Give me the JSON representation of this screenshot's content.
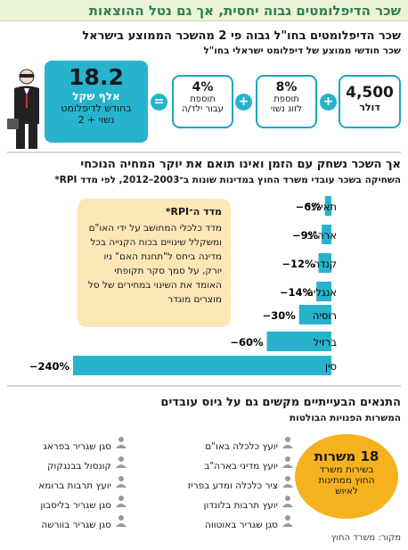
{
  "header": {
    "title": "שכר הדיפלומטים גבוה יחסית, אך גם נטל ההוצאות"
  },
  "salary": {
    "title": "שכר הדיפלומטים בחו\"ל גבוה פי 2 מהשכר הממוצע בישראל",
    "subtitle": "שכר חודשי ממוצע של דיפלומט ישראלי בחו\"ל",
    "cards": [
      {
        "value": "4,500",
        "line1": "דולר",
        "line2": ""
      },
      {
        "value": "8%",
        "line1": "תוספת",
        "line2": "לזוג נשוי"
      },
      {
        "value": "4%",
        "line1": "תוספת",
        "line2": "עבור ילד/ה"
      }
    ],
    "result": {
      "value": "18.2",
      "unit": "אלף שקל",
      "line1": "בחודש לדיפלומט",
      "line2": "נשוי + 2"
    },
    "plus_symbol": "+",
    "equals_symbol": "="
  },
  "chart_section": {
    "title": "אך השכר נשחק עם הזמן ואינו תואם את יוקר המחיה הנוכחי",
    "subtitle": "השחיקה בשכר עובדי משרד החוץ במדינות שונות ב־2003–2012, לפי מדד RPI*",
    "rpi_box": {
      "heading": "מדד ה־RPI*",
      "text": "מדד כלכלי המחושב על ידי האו\"ם ומשקלל שינויים בכוח הקנייה בכל מדינה ביחס ל\"תחנת האם\" ניו יורק, על סמך סקר תקופתי האומד את השינוי במחירים של סל מוצרים מוגדר"
    }
  },
  "chart_data": {
    "type": "bar",
    "orientation": "horizontal",
    "categories": [
      "תאילנד",
      "ארה\"ב",
      "קנדה",
      "אנגליה",
      "רוסיה",
      "ברזיל",
      "סין"
    ],
    "values": [
      -6,
      -9,
      -12,
      -14,
      -30,
      -60,
      -240
    ],
    "value_labels": [
      "−6%",
      "−9%",
      "−12%",
      "−14%",
      "−30%",
      "−60%",
      "−240%"
    ],
    "xlim": [
      -240,
      0
    ],
    "bar_color": "#27b3cc",
    "grid": false
  },
  "conditions": {
    "title": "התנאים הבעייתיים מקשים גם על גיוס עובדים",
    "subtitle": "המשרות הפנויות הבולטות",
    "col_right": [
      "יועץ כלכלה באו\"ם",
      "יועץ מדיני בארה\"ב",
      "ציר כלכלה ומדע בפריז",
      "יועץ תרבות בלונדון",
      "סגן שגריר באוטווה"
    ],
    "col_left": [
      "סגן שגריר בפראג",
      "קונסול בבנגקוק",
      "יועץ תרבות ברומא",
      "סגן שגריר בליסבון",
      "סגן שגריר בוורשה"
    ],
    "circle": {
      "line1": "18 משרות",
      "line2": "בשירות משרד",
      "line3": "החוץ ממתינות",
      "line4": "לאיוש"
    },
    "circle_color": "#f6b21e"
  },
  "source": "מקור: משרד החוץ"
}
